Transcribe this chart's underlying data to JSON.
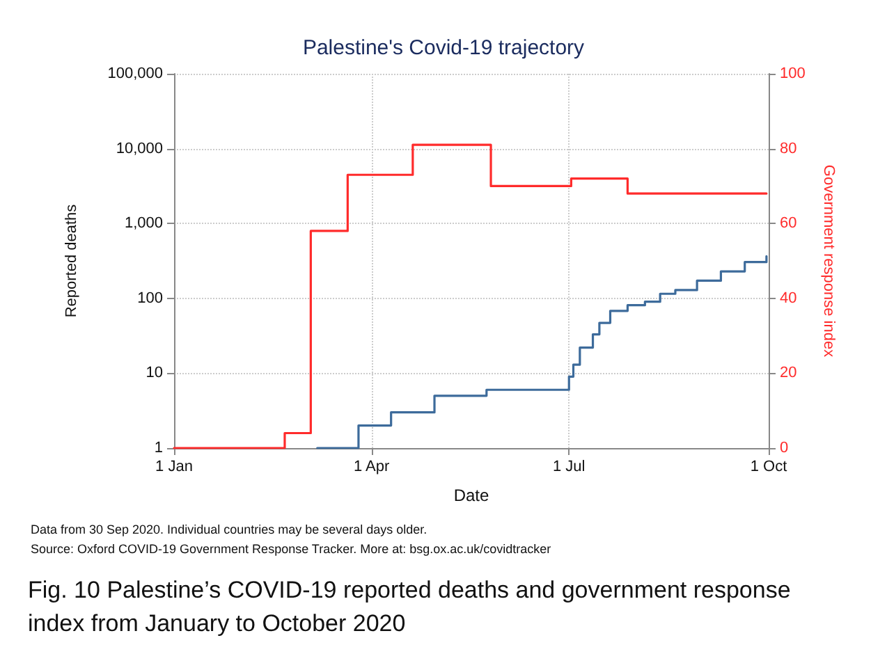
{
  "chart_data": {
    "type": "step",
    "title": "Palestine's Covid-19 trajectory",
    "xlabel": "Date",
    "ylabel": "Reported deaths",
    "y2label": "Government response index",
    "annotations": [
      "Data from 30 Sep 2020. Individual countries may be several days older.",
      "Source: Oxford COVID-19 Government Response Tracker. More at: bsg.ox.ac.uk/covidtracker",
      "Fig. 10 Palestine’s COVID-19 reported deaths and government response index from January to October 2020"
    ],
    "series": [
      {
        "color": "#3d6b9b",
        "x": [
          "2020-03-07",
          "2020-03-26",
          "2020-04-10",
          "2020-04-30",
          "2020-05-24",
          "2020-06-27",
          "2020-07-01",
          "2020-07-03",
          "2020-07-06",
          "2020-07-12",
          "2020-07-15",
          "2020-07-20",
          "2020-07-28",
          "2020-08-05",
          "2020-08-12",
          "2020-08-19",
          "2020-08-29",
          "2020-09-09",
          "2020-09-20",
          "2020-09-30"
        ],
        "values": [
          1,
          2,
          3,
          5,
          6,
          6,
          9,
          13,
          22,
          33,
          47,
          68,
          81,
          90,
          115,
          129,
          172,
          229,
          305,
          365
        ]
      },
      {
        "color": "#ff2b2b",
        "axis": "y2",
        "x": [
          "2020-01-01",
          "2020-02-21",
          "2020-03-04",
          "2020-03-21",
          "2020-04-20",
          "2020-05-26",
          "2020-07-02",
          "2020-07-28",
          "2020-09-30"
        ],
        "values": [
          0,
          4,
          58,
          73,
          81,
          70,
          72,
          68,
          68
        ]
      }
    ],
    "xlim": [
      "2020-01-01",
      "2020-10-01"
    ],
    "xticks": [
      {
        "value": "2020-01-01",
        "label": "1 Jan"
      },
      {
        "value": "2020-04-01",
        "label": "1 Apr"
      },
      {
        "value": "2020-07-01",
        "label": "1 Jul"
      },
      {
        "value": "2020-10-01",
        "label": "1 Oct"
      }
    ],
    "log": "y",
    "ylim": [
      1,
      100000
    ],
    "yticks": [
      1,
      10,
      100,
      {
        "value": 1000,
        "label": "1,000"
      },
      {
        "value": 10000,
        "label": "10,000"
      },
      {
        "value": 100000,
        "label": "100,000"
      }
    ],
    "y2lim": [
      0,
      100
    ],
    "y2ticks": [
      0,
      20,
      40,
      60,
      80,
      100
    ],
    "grid": true,
    "marker": "none",
    "line_style": "solid"
  }
}
